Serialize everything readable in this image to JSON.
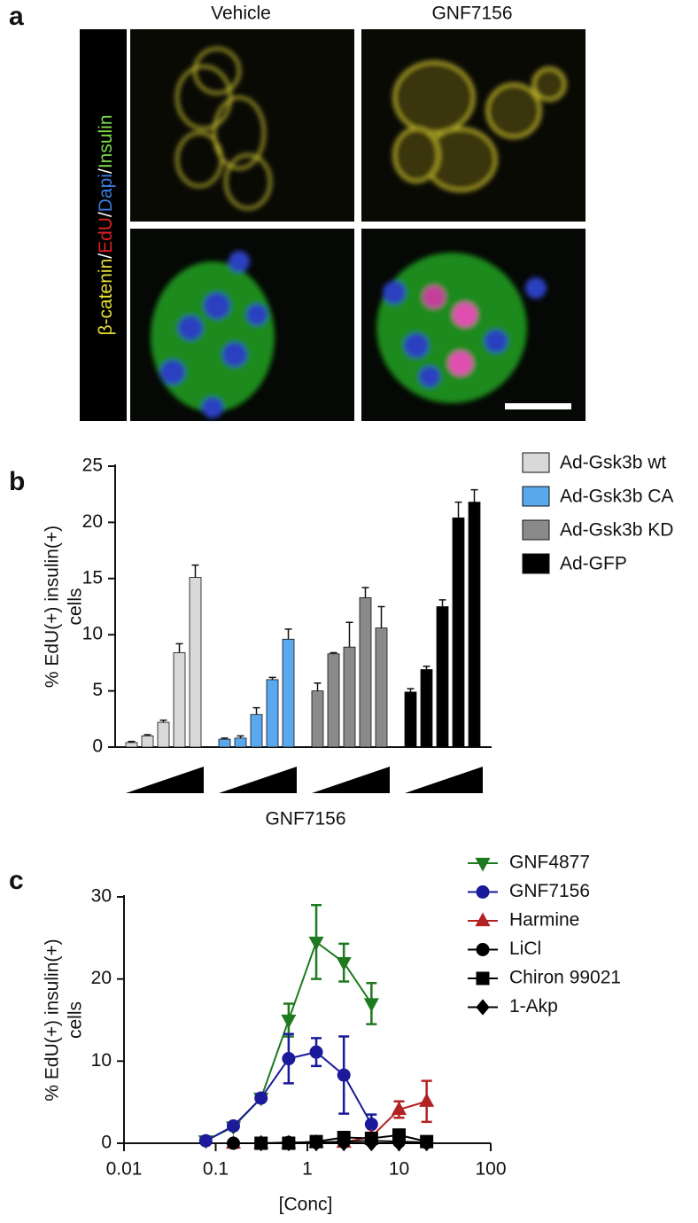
{
  "panel_a": {
    "panel": "a",
    "columns": [
      "Vehicle",
      "GNF7156"
    ],
    "stain_label": [
      "β-catenin",
      "/",
      "EdU",
      "/",
      "Dapi",
      "/",
      "Insulin"
    ],
    "stain_colors": [
      "#e6e033",
      "#ffffff",
      "#e02020",
      "#ffffff",
      "#3a7de0",
      "#ffffff",
      "#7ee04a"
    ]
  },
  "chart_data": [
    {
      "type": "bar",
      "panel": "b",
      "x_label": "GNF7156",
      "y_label": [
        "% EdU(+) insulin(+)",
        "cells"
      ],
      "categories": [
        null,
        null,
        null,
        null,
        null
      ],
      "ylim": [
        0,
        25
      ],
      "yticks": [
        0,
        5,
        10,
        15,
        20,
        25
      ],
      "series": [
        {
          "name": "Ad-Gsk3b wt",
          "color": "#d9d9d9",
          "values": [
            0.4,
            1.0,
            2.2,
            8.4,
            15.1
          ],
          "errors": [
            0.1,
            0.1,
            0.2,
            0.8,
            1.1
          ]
        },
        {
          "name": "Ad-Gsk3b CA",
          "color": "#5aa9ee",
          "values": [
            0.7,
            0.8,
            2.9,
            6.0,
            9.6
          ],
          "errors": [
            0.1,
            0.2,
            0.6,
            0.2,
            0.9
          ]
        },
        {
          "name": "Ad-Gsk3b KD",
          "color": "#8a8a8a",
          "values": [
            5.0,
            8.3,
            8.9,
            13.3,
            10.6
          ],
          "errors": [
            0.7,
            0.1,
            2.2,
            0.9,
            1.9
          ]
        },
        {
          "name": "Ad-GFP",
          "color": "#000000",
          "values": [
            4.9,
            6.9,
            12.5,
            20.4,
            21.8
          ],
          "errors": [
            0.3,
            0.3,
            0.6,
            1.4,
            1.1
          ]
        }
      ]
    },
    {
      "type": "line",
      "panel": "c",
      "x_label": "[Conc]",
      "y_label": [
        "% EdU(+) insulin(+)",
        "cells"
      ],
      "log_x": true,
      "xlim": [
        0.01,
        100
      ],
      "xticks": [
        0.01,
        0.1,
        1,
        10,
        100
      ],
      "ylim": [
        0,
        30
      ],
      "yticks": [
        0,
        10,
        20,
        30
      ],
      "x": [
        0.078,
        0.156,
        0.3125,
        0.625,
        1.25,
        2.5,
        5,
        10,
        20
      ],
      "series": [
        {
          "name": "GNF4877",
          "color": "#1e7a1e",
          "marker": "triangle-down",
          "values": [
            0.3,
            2.0,
            5.5,
            15.0,
            24.5,
            22.0,
            17.0,
            null,
            null
          ],
          "errors": [
            0.2,
            0.3,
            0.3,
            2.0,
            4.5,
            2.3,
            2.5,
            null,
            null
          ]
        },
        {
          "name": "GNF7156",
          "color": "#1a1a9a",
          "marker": "circle",
          "values": [
            0.3,
            2.1,
            5.5,
            10.3,
            11.1,
            8.3,
            2.3,
            null,
            null
          ],
          "errors": [
            0.3,
            0.3,
            0.3,
            3.0,
            1.7,
            4.7,
            1.2,
            null,
            null
          ]
        },
        {
          "name": "Harmine",
          "color": "#b22222",
          "marker": "triangle",
          "values": [
            null,
            0,
            0,
            0,
            0.1,
            0.1,
            0.8,
            4.1,
            5.1
          ],
          "errors": [
            null,
            0.1,
            0.1,
            0.1,
            0.1,
            0.1,
            0.4,
            1.0,
            2.5
          ]
        },
        {
          "name": "LiCl",
          "color": "#000000",
          "marker": "circle",
          "values": [
            null,
            0,
            0,
            0.1,
            0.1,
            0.2,
            0.3,
            0.2,
            0.1
          ],
          "errors": [
            null,
            0.1,
            0.1,
            0.1,
            0.1,
            0.1,
            0.2,
            0.2,
            0.1
          ]
        },
        {
          "name": "Chiron 99021",
          "color": "#000000",
          "marker": "square",
          "values": [
            null,
            null,
            0,
            0,
            0.2,
            0.7,
            0.6,
            1.0,
            0.2
          ],
          "errors": [
            null,
            null,
            0.1,
            0.1,
            0.1,
            0.3,
            0.3,
            0.4,
            0.1
          ]
        },
        {
          "name": "1-Akp",
          "color": "#000000",
          "marker": "diamond",
          "values": [
            null,
            null,
            0,
            0,
            0,
            0,
            0,
            0,
            0
          ],
          "errors": [
            null,
            null,
            0.1,
            0.1,
            0.1,
            0.1,
            0.1,
            0.1,
            0.1
          ]
        }
      ]
    }
  ]
}
